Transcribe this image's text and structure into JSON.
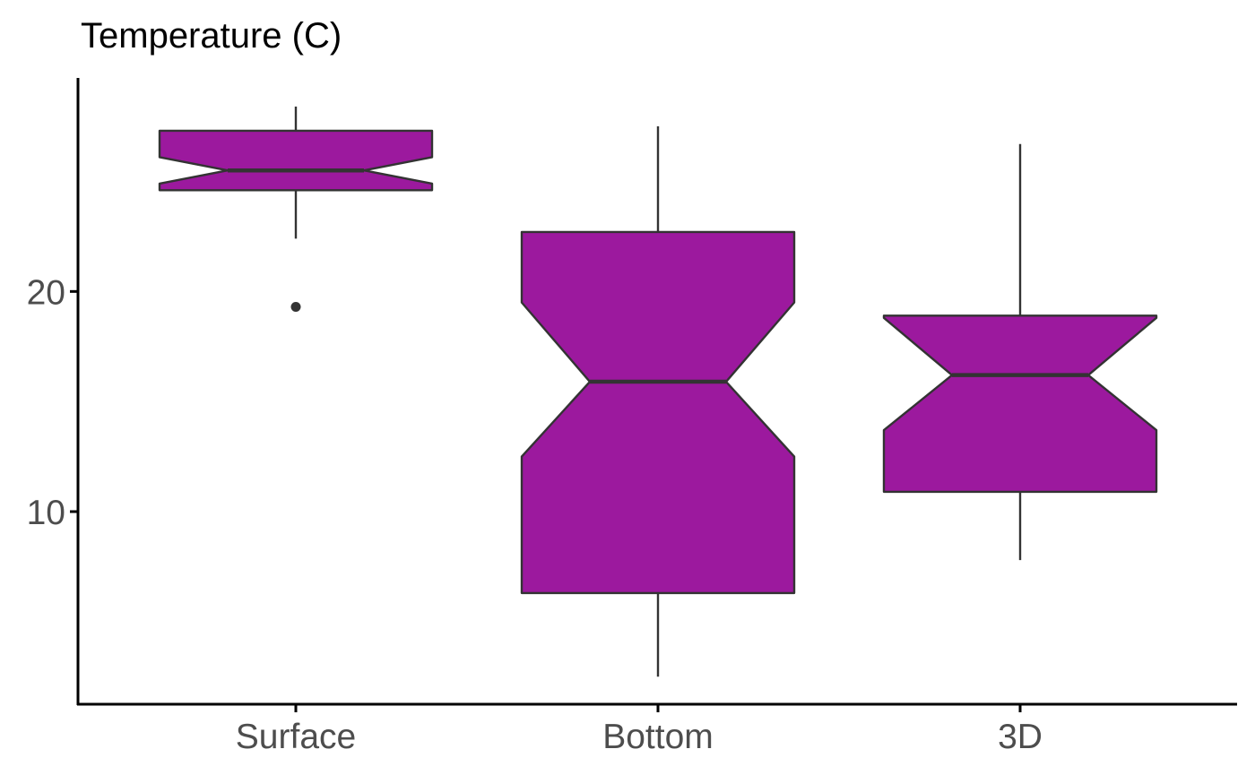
{
  "chart_data": {
    "type": "boxplot",
    "notched": true,
    "title": "Temperature (C)",
    "xlabel": "",
    "ylabel": "",
    "ylim": [
      1.25,
      29.7
    ],
    "yticks": [
      10,
      20
    ],
    "categories": [
      "Surface",
      "Bottom",
      "3D"
    ],
    "boxes": [
      {
        "category": "Surface",
        "whisker_low": 22.4,
        "q1": 24.6,
        "median": 25.5,
        "q3": 27.3,
        "whisker_high": 28.4,
        "notch_low": 24.9,
        "notch_high": 26.1,
        "outliers": [
          19.3
        ]
      },
      {
        "category": "Bottom",
        "whisker_low": 2.5,
        "q1": 6.3,
        "median": 15.9,
        "q3": 22.7,
        "whisker_high": 27.5,
        "notch_low": 12.5,
        "notch_high": 19.5,
        "outliers": []
      },
      {
        "category": "3D",
        "whisker_low": 7.8,
        "q1": 10.9,
        "median": 16.2,
        "q3": 18.9,
        "whisker_high": 26.7,
        "notch_low": 13.7,
        "notch_high": 18.8,
        "outliers": []
      }
    ],
    "grid": false,
    "legend": "none",
    "colors": {
      "fill": "#9c199e",
      "stroke": "#333333",
      "axis": "#000000",
      "tick_label": "#4d4d4d"
    }
  }
}
